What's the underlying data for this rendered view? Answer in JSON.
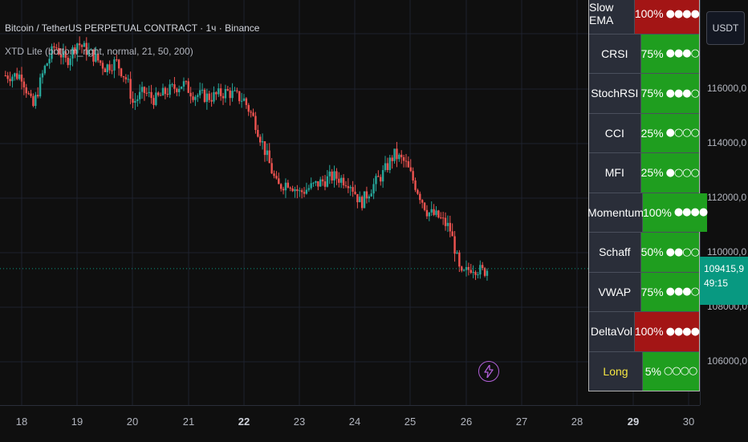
{
  "chart": {
    "symbol_title": "Bitcoin / TetherUS PERPETUAL CONTRACT · 1ч · Binance",
    "indicator_title": "XTD Lite (bottom_right, normal, 21, 50, 200)",
    "currency": "USDT",
    "last_price": "109415,9",
    "countdown": "49:15",
    "price_labels": [
      "116000,0",
      "114000,0",
      "112000,0",
      "110000,0",
      "108000,0",
      "106000,0"
    ],
    "time_labels": [
      {
        "text": "18",
        "bold": false
      },
      {
        "text": "19",
        "bold": false
      },
      {
        "text": "20",
        "bold": false
      },
      {
        "text": "21",
        "bold": false
      },
      {
        "text": "22",
        "bold": true
      },
      {
        "text": "23",
        "bold": false
      },
      {
        "text": "24",
        "bold": false
      },
      {
        "text": "25",
        "bold": false
      },
      {
        "text": "26",
        "bold": false
      },
      {
        "text": "27",
        "bold": false
      },
      {
        "text": "28",
        "bold": false
      },
      {
        "text": "29",
        "bold": true
      },
      {
        "text": "30",
        "bold": false
      }
    ],
    "colors": {
      "up": "#26a69a",
      "down": "#ef5350",
      "green_cell": "#1f9e1f",
      "red_cell": "#a31515",
      "long_text": "#f5e642"
    }
  },
  "indicators": [
    {
      "name": "Slow EMA",
      "percent": "100%",
      "dots": "●●●●",
      "status": "red"
    },
    {
      "name": "CRSI",
      "percent": "75%",
      "dots": "●●●○",
      "status": "green"
    },
    {
      "name": "StochRSI",
      "percent": "75%",
      "dots": "●●●○",
      "status": "green"
    },
    {
      "name": "CCI",
      "percent": "25%",
      "dots": "●○○○",
      "status": "green"
    },
    {
      "name": "MFI",
      "percent": "25%",
      "dots": "●○○○",
      "status": "green"
    },
    {
      "name": "Momentum",
      "percent": "100%",
      "dots": "●●●●",
      "status": "green"
    },
    {
      "name": "Schaff",
      "percent": "50%",
      "dots": "●●○○",
      "status": "green"
    },
    {
      "name": "VWAP",
      "percent": "75%",
      "dots": "●●●○",
      "status": "green"
    },
    {
      "name": "DeltaVol",
      "percent": "100%",
      "dots": "●●●●",
      "status": "red"
    },
    {
      "name": "Long",
      "percent": "5%",
      "dots": "○○○○",
      "status": "green",
      "highlight": true
    }
  ],
  "icons": {
    "bolt": "lightning-bolt-icon"
  }
}
